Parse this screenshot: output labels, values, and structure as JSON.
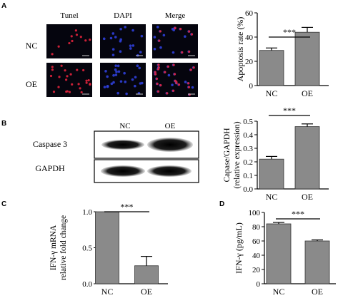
{
  "panels": {
    "A": {
      "letter": "A",
      "col_headers": [
        "Tunel",
        "DAPI",
        "Merge"
      ],
      "row_labels": [
        "NC",
        "OE"
      ],
      "colors": {
        "tunel": "#e0243c",
        "dapi": "#2f3fd8",
        "background": "#05050e"
      }
    },
    "B": {
      "letter": "B",
      "col_headers": [
        "NC",
        "OE"
      ],
      "row_labels": [
        "Caspase 3",
        "GAPDH"
      ]
    },
    "C": {
      "letter": "C"
    },
    "D": {
      "letter": "D"
    }
  },
  "chart_data": [
    {
      "id": "apoptosis",
      "type": "bar",
      "categories": [
        "NC",
        "OE"
      ],
      "values": [
        29,
        44
      ],
      "errors": [
        2,
        4
      ],
      "ylabel": "Apoptosis rate (%)",
      "ylim": [
        0,
        60
      ],
      "yticks": [
        "0",
        "20",
        "40",
        "60"
      ],
      "significance": "***",
      "bar_color": "#8a8a8a"
    },
    {
      "id": "caspase",
      "type": "bar",
      "categories": [
        "NC",
        "OE"
      ],
      "values": [
        0.22,
        0.46
      ],
      "errors": [
        0.02,
        0.02
      ],
      "ylabel_lines": [
        "Capase/GAPDH",
        "(relative expression)"
      ],
      "ylim": [
        0,
        0.5
      ],
      "yticks": [
        "0.0",
        "0.1",
        "0.2",
        "0.3",
        "0.4",
        "0.5"
      ],
      "significance": "***",
      "bar_color": "#8a8a8a"
    },
    {
      "id": "ifn_mrna",
      "type": "bar",
      "categories": [
        "NC",
        "OE"
      ],
      "values": [
        1.0,
        0.25
      ],
      "errors": [
        0,
        0.13
      ],
      "ylabel_lines": [
        "IFN-γ mRNA",
        "relative fold change"
      ],
      "ylim": [
        0,
        1.0
      ],
      "yticks": [
        "0.0",
        "0.5",
        "1.0"
      ],
      "significance": "***",
      "bar_color": "#8a8a8a"
    },
    {
      "id": "ifn_protein",
      "type": "bar",
      "categories": [
        "NC",
        "OE"
      ],
      "values": [
        84,
        60
      ],
      "errors": [
        2,
        1.5
      ],
      "ylabel": "IFN-γ (pg/mL)",
      "ylim": [
        0,
        100
      ],
      "yticks": [
        "0",
        "20",
        "40",
        "60",
        "80",
        "100"
      ],
      "significance": "***",
      "bar_color": "#8a8a8a"
    }
  ]
}
